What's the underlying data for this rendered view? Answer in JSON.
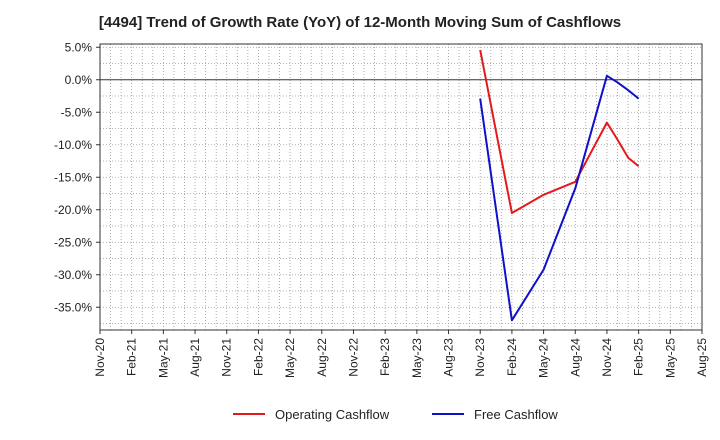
{
  "chart_data": {
    "type": "line",
    "title": "[4494]  Trend of Growth Rate (YoY) of 12-Month Moving Sum of Cashflows",
    "xlabel": "",
    "ylabel": "",
    "ylim": [
      -38.5,
      5.5
    ],
    "y_ticks": [
      5,
      0,
      -5,
      -10,
      -15,
      -20,
      -25,
      -30,
      -35
    ],
    "y_tick_labels": [
      "5.0%",
      "0.0%",
      "-5.0%",
      "-10.0%",
      "-15.0%",
      "-20.0%",
      "-25.0%",
      "-30.0%",
      "-35.0%"
    ],
    "x_tick_labels": [
      "Nov-20",
      "Feb-21",
      "May-21",
      "Aug-21",
      "Nov-21",
      "Feb-22",
      "May-22",
      "Aug-22",
      "Nov-22",
      "Feb-23",
      "May-23",
      "Aug-23",
      "Nov-23",
      "Feb-24",
      "May-24",
      "Aug-24",
      "Nov-24",
      "Feb-25",
      "May-25",
      "Aug-25"
    ],
    "grid": true,
    "legend_position": "bottom",
    "series": [
      {
        "name": "Operating Cashflow",
        "color": "#e31a1c",
        "x": [
          "Nov-23",
          "Feb-24",
          "May-24",
          "Aug-24",
          "Nov-24",
          "Dec-24",
          "Jan-25",
          "Feb-25"
        ],
        "x_index": [
          12,
          13,
          14,
          15,
          16,
          16.33,
          16.67,
          17
        ],
        "values": [
          4.6,
          -20.5,
          -17.7,
          -15.7,
          -6.6,
          -9.2,
          -12.0,
          -13.3
        ]
      },
      {
        "name": "Free Cashflow",
        "color": "#1010c8",
        "x": [
          "Nov-23",
          "Feb-24",
          "May-24",
          "Aug-24",
          "Nov-24",
          "Dec-24",
          "Jan-25",
          "Feb-25"
        ],
        "x_index": [
          12,
          13,
          14,
          15,
          16,
          16.33,
          16.67,
          17
        ],
        "values": [
          -2.9,
          -37.0,
          -29.2,
          -16.7,
          0.6,
          -0.4,
          -1.6,
          -2.9
        ]
      }
    ]
  }
}
